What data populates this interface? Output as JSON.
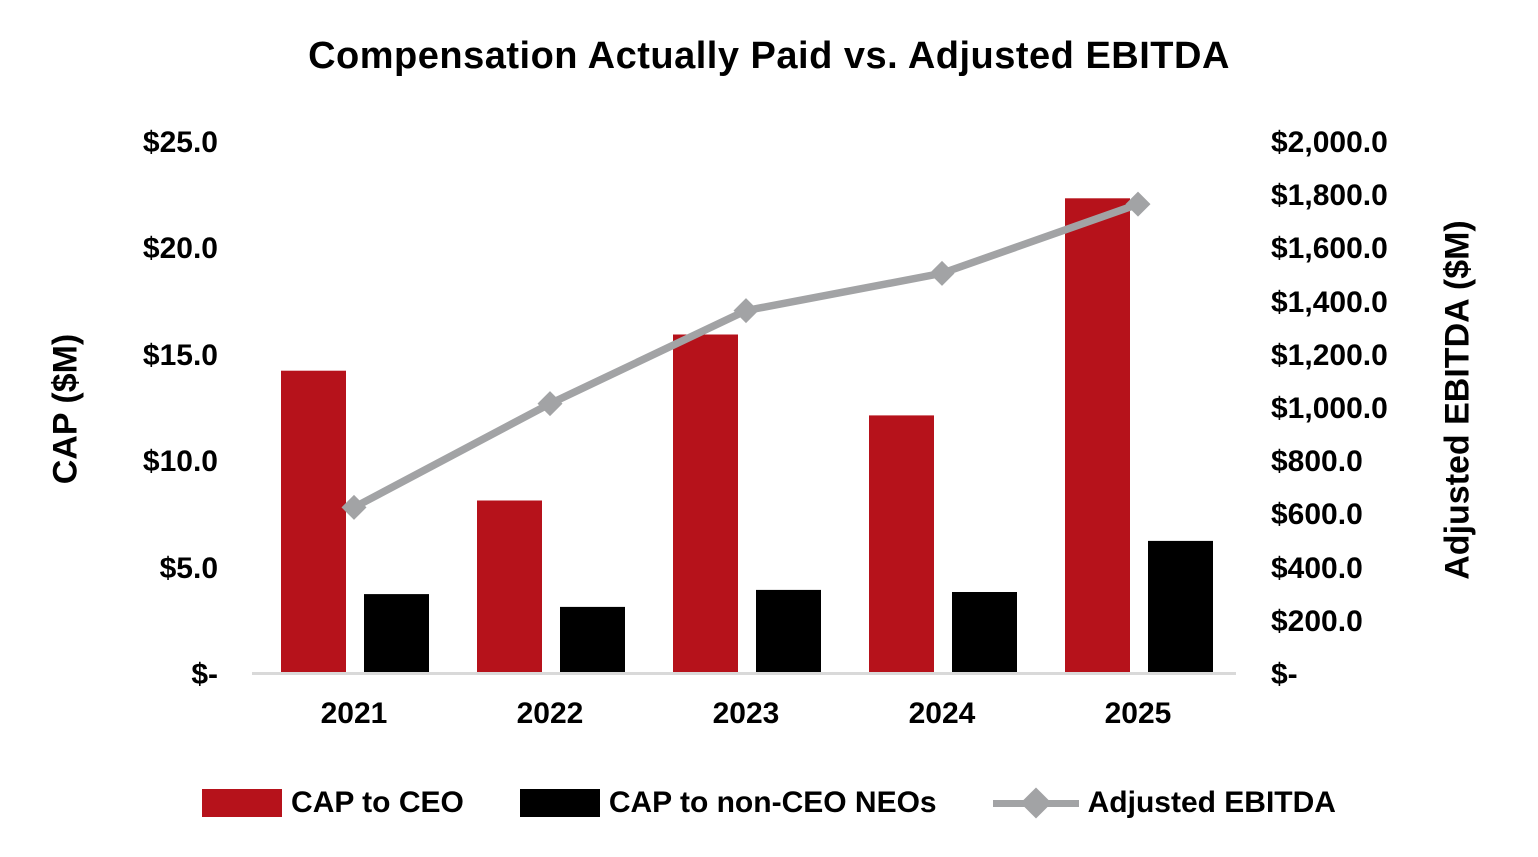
{
  "title": "Compensation Actually Paid vs. Adjusted EBITDA",
  "colors": {
    "cap_ceo_red": "#B6121B",
    "cap_neo_black": "#000000",
    "ebitda_gray": "#A2A3A5",
    "baseline_gray": "#D9D9D9",
    "text": "#000000",
    "background": "#FFFFFF"
  },
  "left_axis": {
    "title": "CAP ($M)",
    "ticks": [
      {
        "value": 25,
        "label": "$25.0"
      },
      {
        "value": 20,
        "label": "$20.0"
      },
      {
        "value": 15,
        "label": "$15.0"
      },
      {
        "value": 10,
        "label": "$10.0"
      },
      {
        "value": 5,
        "label": "$5.0"
      },
      {
        "value": 0,
        "label": "$-"
      }
    ]
  },
  "right_axis": {
    "title": "Adjusted EBITDA ($M)",
    "ticks": [
      {
        "value": 2000,
        "label": "$2,000.0"
      },
      {
        "value": 1800,
        "label": "$1,800.0"
      },
      {
        "value": 1600,
        "label": "$1,600.0"
      },
      {
        "value": 1400,
        "label": "$1,400.0"
      },
      {
        "value": 1200,
        "label": "$1,200.0"
      },
      {
        "value": 1000,
        "label": "$1,000.0"
      },
      {
        "value": 800,
        "label": "$800.0"
      },
      {
        "value": 600,
        "label": "$600.0"
      },
      {
        "value": 400,
        "label": "$400.0"
      },
      {
        "value": 200,
        "label": "$200.0"
      },
      {
        "value": 0,
        "label": "$-"
      }
    ]
  },
  "legend": {
    "items": [
      {
        "label": "CAP to CEO",
        "type": "bar",
        "color": "#B6121B"
      },
      {
        "label": "CAP to non-CEO NEOs",
        "type": "bar",
        "color": "#000000"
      },
      {
        "label": "Adjusted EBITDA",
        "type": "line",
        "color": "#A2A3A5"
      }
    ]
  },
  "chart_data": {
    "type": "combo bar+line, dual axis",
    "title": "Compensation Actually Paid vs. Adjusted EBITDA",
    "categories": [
      "2021",
      "2022",
      "2023",
      "2024",
      "2025"
    ],
    "series": [
      {
        "name": "CAP to CEO",
        "type": "bar",
        "axis": "left",
        "color": "#B6121B",
        "values": [
          14.3,
          8.2,
          16.0,
          12.2,
          22.4
        ]
      },
      {
        "name": "CAP to non-CEO NEOs",
        "type": "bar",
        "axis": "left",
        "color": "#000000",
        "values": [
          3.8,
          3.2,
          4.0,
          3.9,
          6.3
        ]
      },
      {
        "name": "Adjusted EBITDA",
        "type": "line",
        "axis": "right",
        "color": "#A2A3A5",
        "marker": "diamond",
        "values": [
          630,
          1020,
          1370,
          1510,
          1770
        ]
      }
    ],
    "left_ylabel": "CAP ($M)",
    "right_ylabel": "Adjusted EBITDA ($M)",
    "left_ylim": [
      0,
      25
    ],
    "right_ylim": [
      0,
      2000
    ],
    "grid": false,
    "legend_position": "bottom"
  }
}
